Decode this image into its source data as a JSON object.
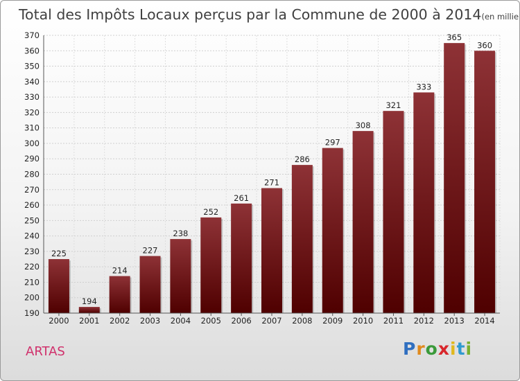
{
  "chart_data": {
    "type": "bar",
    "title": "Total des Impôts Locaux perçus par la Commune de 2000 à 2014",
    "title_unit": "(en milliers d'€)",
    "categories": [
      "2000",
      "2001",
      "2002",
      "2003",
      "2004",
      "2005",
      "2006",
      "2007",
      "2008",
      "2009",
      "2010",
      "2011",
      "2012",
      "2013",
      "2014"
    ],
    "values": [
      225,
      194,
      214,
      227,
      238,
      252,
      261,
      271,
      286,
      297,
      308,
      321,
      333,
      365,
      360
    ],
    "ylim": [
      190,
      370
    ],
    "yticks": [
      190,
      200,
      210,
      220,
      230,
      240,
      250,
      260,
      270,
      280,
      290,
      300,
      310,
      320,
      330,
      340,
      350,
      360,
      370
    ],
    "grid": true,
    "xlabel": "",
    "ylabel": ""
  },
  "commune_name": "ARTAS",
  "logo": {
    "text": "Proxiti",
    "letters": [
      "P",
      "r",
      "o",
      "x",
      "i",
      "t",
      "i"
    ]
  },
  "colors": {
    "bar_dark": "#4f0000",
    "bar_light": "#8c2f34",
    "commune": "#d0306b",
    "logo": [
      "#2f6fc0",
      "#e08a1e",
      "#3a9a3a",
      "#d8262b",
      "#e0b81e",
      "#2f9ad0",
      "#78b030"
    ]
  }
}
